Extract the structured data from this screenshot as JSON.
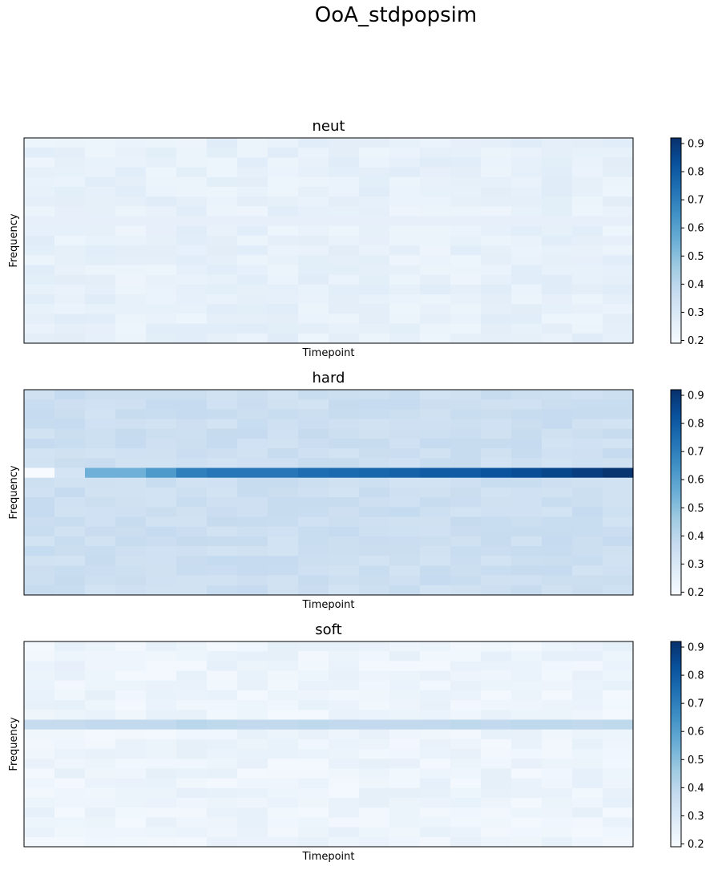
{
  "title": "OoA_stdpopsim",
  "chart_data": {
    "type": "heatmap",
    "colormap": "Blues",
    "n_timepoints": 20,
    "n_frequency_bins": 21,
    "highlight_row": 8,
    "colorbar": {
      "range": [
        0.19,
        0.92
      ],
      "ticks": [
        0.2,
        0.3,
        0.4,
        0.5,
        0.6,
        0.7,
        0.8,
        0.9
      ]
    },
    "panels": [
      {
        "title": "neut",
        "xlabel": "Timepoint",
        "ylabel": "Frequency",
        "background_level": 0.25,
        "highlight_values": [
          0.25,
          0.25,
          0.25,
          0.25,
          0.25,
          0.25,
          0.25,
          0.25,
          0.25,
          0.25,
          0.25,
          0.25,
          0.25,
          0.25,
          0.25,
          0.25,
          0.25,
          0.25,
          0.25,
          0.25
        ]
      },
      {
        "title": "hard",
        "xlabel": "Timepoint",
        "ylabel": "Frequency",
        "background_level": 0.35,
        "highlight_values": [
          0.19,
          0.32,
          0.55,
          0.55,
          0.62,
          0.7,
          0.72,
          0.72,
          0.72,
          0.75,
          0.76,
          0.77,
          0.78,
          0.8,
          0.8,
          0.82,
          0.84,
          0.86,
          0.88,
          0.91
        ]
      },
      {
        "title": "soft",
        "xlabel": "Timepoint",
        "ylabel": "Frequency",
        "background_level": 0.23,
        "highlight_values": [
          0.37,
          0.37,
          0.38,
          0.38,
          0.38,
          0.4,
          0.39,
          0.38,
          0.38,
          0.39,
          0.38,
          0.38,
          0.38,
          0.38,
          0.39,
          0.38,
          0.39,
          0.39,
          0.38,
          0.39
        ]
      }
    ]
  }
}
